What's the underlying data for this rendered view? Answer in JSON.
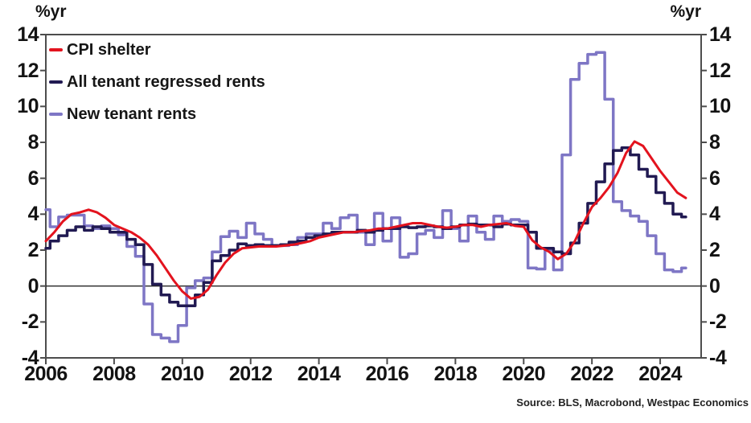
{
  "axes": {
    "unit_left": "%yr",
    "unit_right": "%yr"
  },
  "source": "Source: BLS, Macrobond, Westpac Economics",
  "chart_data": {
    "type": "line",
    "title": "",
    "ylabel": "%yr",
    "ylim": [
      -4,
      14
    ],
    "yticks": [
      -4,
      -2,
      0,
      2,
      4,
      6,
      8,
      10,
      12,
      14
    ],
    "xlim": [
      2006,
      2025.2
    ],
    "xticks": [
      2006,
      2008,
      2010,
      2012,
      2014,
      2016,
      2018,
      2020,
      2022,
      2024
    ],
    "x_start": 2006,
    "x_step": 0.25,
    "grid": false,
    "zero_line": true,
    "legend_position": "top-left",
    "frame_color": "#4d4d4d",
    "series": [
      {
        "name": "CPI shelter",
        "color": "#e3131e",
        "style": "linear",
        "values": [
          2.5,
          3.0,
          3.6,
          4.0,
          4.1,
          4.25,
          4.1,
          3.8,
          3.4,
          3.2,
          3.0,
          2.7,
          2.3,
          1.7,
          1.0,
          0.3,
          -0.3,
          -0.7,
          -0.6,
          -0.2,
          0.6,
          1.3,
          1.8,
          2.1,
          2.15,
          2.2,
          2.2,
          2.2,
          2.25,
          2.3,
          2.4,
          2.5,
          2.7,
          2.8,
          2.9,
          3.0,
          3.0,
          3.05,
          3.1,
          3.2,
          3.2,
          3.3,
          3.4,
          3.5,
          3.5,
          3.4,
          3.3,
          3.25,
          3.3,
          3.4,
          3.4,
          3.3,
          3.4,
          3.45,
          3.5,
          3.35,
          3.3,
          2.55,
          2.15,
          1.9,
          1.5,
          1.8,
          2.5,
          3.5,
          4.4,
          4.9,
          5.5,
          6.3,
          7.4,
          8.05,
          7.8,
          7.1,
          6.4,
          5.8,
          5.2,
          4.9
        ]
      },
      {
        "name": "All tenant regressed rents",
        "color": "#211a52",
        "style": "step",
        "values": [
          2.1,
          2.5,
          2.8,
          3.1,
          3.3,
          3.1,
          3.3,
          3.2,
          3.0,
          3.0,
          2.6,
          2.3,
          1.2,
          0.1,
          -0.5,
          -0.9,
          -1.1,
          -1.1,
          -0.5,
          0.2,
          1.4,
          1.7,
          2.0,
          2.35,
          2.25,
          2.3,
          2.25,
          2.25,
          2.3,
          2.45,
          2.5,
          2.7,
          2.8,
          2.9,
          3.0,
          3.0,
          3.0,
          3.1,
          3.0,
          3.1,
          3.2,
          3.2,
          3.3,
          3.25,
          3.3,
          3.35,
          3.3,
          3.2,
          3.3,
          3.4,
          3.45,
          3.4,
          3.4,
          3.3,
          3.45,
          3.4,
          3.4,
          3.0,
          2.1,
          2.1,
          1.9,
          1.8,
          2.4,
          3.5,
          4.6,
          5.8,
          6.8,
          7.55,
          7.7,
          7.3,
          6.5,
          6.1,
          5.2,
          4.6,
          4.0,
          3.85
        ]
      },
      {
        "name": "New tenant rents",
        "color": "#7e76c5",
        "style": "step",
        "values": [
          4.25,
          3.3,
          3.85,
          3.95,
          3.95,
          3.35,
          3.2,
          3.35,
          3.2,
          2.85,
          2.2,
          1.65,
          -1.0,
          -2.7,
          -2.9,
          -3.1,
          -2.2,
          -0.1,
          0.3,
          0.45,
          1.9,
          2.75,
          3.05,
          2.7,
          3.5,
          2.9,
          2.6,
          2.25,
          2.25,
          2.3,
          2.7,
          2.9,
          2.9,
          3.5,
          3.2,
          3.8,
          3.95,
          3.0,
          2.3,
          4.05,
          2.5,
          3.8,
          1.6,
          1.8,
          2.9,
          3.1,
          2.7,
          4.2,
          3.2,
          2.5,
          3.9,
          3.0,
          2.6,
          3.9,
          3.6,
          3.7,
          3.6,
          1.0,
          0.95,
          2.0,
          0.9,
          7.3,
          11.5,
          12.4,
          12.9,
          13.0,
          10.4,
          4.7,
          4.2,
          3.9,
          3.6,
          2.8,
          1.8,
          0.9,
          0.8,
          1.0
        ]
      }
    ]
  }
}
